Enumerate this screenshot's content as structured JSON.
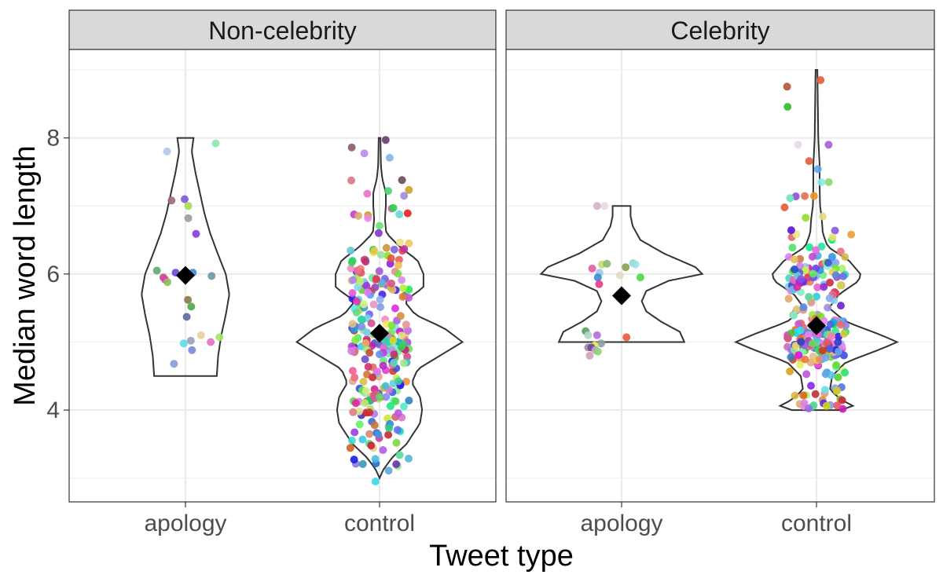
{
  "chart_data": {
    "type": "violin",
    "xlabel": "Tweet type",
    "ylabel": "Median word length",
    "ylim": [
      2.65,
      9.3
    ],
    "yticks": [
      4,
      6,
      8
    ],
    "categories": [
      "apology",
      "control"
    ],
    "grid": true,
    "panels": [
      {
        "title": "Non-celebrity",
        "groups": [
          {
            "category": "apology",
            "mean": 5.98,
            "violin": {
              "ymin": 4.5,
              "ymax": 8.0,
              "profile": [
                [
                  4.5,
                  0.7
                ],
                [
                  4.8,
                  0.73
                ],
                [
                  5.1,
                  0.8
                ],
                [
                  5.4,
                  0.9
                ],
                [
                  5.7,
                  0.98
                ],
                [
                  6.0,
                  0.9
                ],
                [
                  6.3,
                  0.72
                ],
                [
                  6.6,
                  0.55
                ],
                [
                  6.9,
                  0.42
                ],
                [
                  7.2,
                  0.32
                ],
                [
                  7.5,
                  0.22
                ],
                [
                  7.8,
                  0.14
                ],
                [
                  8.0,
                  0.18
                ]
              ]
            },
            "points": [
              [
                -0.45,
                7.8,
                "#b3c6e8"
              ],
              [
                0.74,
                7.92,
                "#8ee6a8"
              ],
              [
                -0.02,
                7.1,
                "#7a5ad8"
              ],
              [
                -0.34,
                7.08,
                "#9b6b7a"
              ],
              [
                0.07,
                7.0,
                "#a6d84f"
              ],
              [
                0.07,
                6.82,
                "#a09aa0"
              ],
              [
                0.26,
                6.59,
                "#8a3ad8"
              ],
              [
                -0.7,
                6.05,
                "#5ea870"
              ],
              [
                -0.54,
                5.95,
                "#b05a8a"
              ],
              [
                -0.5,
                5.92,
                "#e83ab8"
              ],
              [
                -0.44,
                5.88,
                "#8ac05a"
              ],
              [
                -0.24,
                6.02,
                "#6a4ad8"
              ],
              [
                0.18,
                6.02,
                "#3a8ad8"
              ],
              [
                0.64,
                5.97,
                "#6a9aa0"
              ],
              [
                0.06,
                5.62,
                "#8a7a4a"
              ],
              [
                0.14,
                5.52,
                "#4aa84a"
              ],
              [
                0.03,
                5.37,
                "#5a6aa0"
              ],
              [
                0.38,
                5.1,
                "#e8d0a0"
              ],
              [
                -0.04,
                4.98,
                "#5ad8e8"
              ],
              [
                0.13,
                5.02,
                "#9aa0b8"
              ],
              [
                0.62,
                5.0,
                "#e870c8"
              ],
              [
                0.83,
                5.07,
                "#a0e860"
              ],
              [
                0.16,
                4.88,
                "#7a8ad8"
              ],
              [
                -0.28,
                4.68,
                "#8a9ad8"
              ]
            ]
          },
          {
            "category": "control",
            "mean": 5.13,
            "violin": {
              "ymin": 3.0,
              "ymax": 8.0,
              "profile": [
                [
                  3.0,
                  0.0
                ],
                [
                  3.12,
                  0.08
                ],
                [
                  3.3,
                  0.28
                ],
                [
                  3.5,
                  0.6
                ],
                [
                  3.8,
                  0.9
                ],
                [
                  4.0,
                  0.95
                ],
                [
                  4.2,
                  0.9
                ],
                [
                  4.4,
                  0.72
                ],
                [
                  4.6,
                  0.85
                ],
                [
                  4.8,
                  1.35
                ],
                [
                  5.0,
                  1.85
                ],
                [
                  5.2,
                  1.45
                ],
                [
                  5.4,
                  0.8
                ],
                [
                  5.6,
                  0.55
                ],
                [
                  5.8,
                  0.98
                ],
                [
                  6.0,
                  0.98
                ],
                [
                  6.2,
                  0.85
                ],
                [
                  6.4,
                  0.45
                ],
                [
                  6.6,
                  0.15
                ],
                [
                  6.8,
                  0.12
                ],
                [
                  7.0,
                  0.14
                ],
                [
                  7.2,
                  0.14
                ],
                [
                  7.4,
                  0.06
                ],
                [
                  7.6,
                  0.03
                ],
                [
                  8.0,
                  0.02
                ]
              ]
            },
            "points": [],
            "generated": {
              "n": 280,
              "seed": 11,
              "outliers": [
                [
                  -0.68,
                  7.86,
                  "#8a5a6a"
                ],
                [
                  0.15,
                  7.97,
                  "#6a3a6a"
                ],
                [
                  0.55,
                  7.38,
                  "#6a4a5a"
                ],
                [
                  -0.1,
                  2.95,
                  "#3ad8e8"
                ],
                [
                  0.6,
                  7.15,
                  "#a08ad8"
                ],
                [
                  -0.3,
                  7.18,
                  "#e870c8"
                ]
              ]
            }
          }
        ]
      },
      {
        "title": "Celebrity",
        "groups": [
          {
            "category": "apology",
            "mean": 5.68,
            "violin": {
              "ymin": 5.0,
              "ymax": 7.0,
              "profile": [
                [
                  5.0,
                  1.4
                ],
                [
                  5.15,
                  1.3
                ],
                [
                  5.3,
                  0.88
                ],
                [
                  5.45,
                  0.55
                ],
                [
                  5.6,
                  0.45
                ],
                [
                  5.75,
                  0.55
                ],
                [
                  5.9,
                  1.05
                ],
                [
                  6.0,
                  1.8
                ],
                [
                  6.1,
                  1.65
                ],
                [
                  6.3,
                  0.95
                ],
                [
                  6.5,
                  0.42
                ],
                [
                  6.7,
                  0.25
                ],
                [
                  6.85,
                  0.2
                ],
                [
                  7.0,
                  0.2
                ]
              ]
            },
            "points": [
              [
                -0.6,
                7.0,
                "#d8b0c8"
              ],
              [
                -0.42,
                7.0,
                "#e8d8e0"
              ],
              [
                -0.48,
                6.14,
                "#c8d870"
              ],
              [
                -0.36,
                6.15,
                "#8ab870"
              ],
              [
                0.1,
                6.1,
                "#8aa04a"
              ],
              [
                0.28,
                6.16,
                "#8ad8d8"
              ],
              [
                0.34,
                6.14,
                "#a0e0e8"
              ],
              [
                -0.72,
                6.08,
                "#e85aa0"
              ],
              [
                -0.54,
                6.02,
                "#a0c8e8"
              ],
              [
                0.46,
                5.95,
                "#4ad84a"
              ],
              [
                -0.58,
                5.95,
                "#3a8ad8"
              ],
              [
                -0.55,
                5.85,
                "#e83a8a"
              ],
              [
                -0.04,
                5.98,
                "#e8d8c0"
              ],
              [
                -0.88,
                5.16,
                "#5aa05a"
              ],
              [
                -0.82,
                5.1,
                "#b0d8c8"
              ],
              [
                -0.6,
                5.1,
                "#b070d8"
              ],
              [
                0.12,
                5.07,
                "#e85a3a"
              ],
              [
                -0.5,
                4.98,
                "#8aa0a0"
              ],
              [
                -0.66,
                4.95,
                "#e8e85a"
              ],
              [
                -0.82,
                4.92,
                "#a08aa0"
              ],
              [
                -0.74,
                4.92,
                "#6a4a8a"
              ],
              [
                -0.64,
                4.88,
                "#c0a0d8"
              ],
              [
                -0.78,
                4.8,
                "#d0a0b8"
              ],
              [
                -0.58,
                4.86,
                "#8ad870"
              ]
            ]
          },
          {
            "category": "control",
            "mean": 5.24,
            "violin": {
              "ymin": 4.0,
              "ymax": 9.0,
              "profile": [
                [
                  4.0,
                  0.55
                ],
                [
                  4.05,
                  0.85
                ],
                [
                  4.15,
                  0.55
                ],
                [
                  4.3,
                  0.3
                ],
                [
                  4.5,
                  0.35
                ],
                [
                  4.7,
                  0.65
                ],
                [
                  4.9,
                  1.45
                ],
                [
                  5.0,
                  1.8
                ],
                [
                  5.1,
                  1.45
                ],
                [
                  5.3,
                  0.65
                ],
                [
                  5.5,
                  0.28
                ],
                [
                  5.7,
                  0.5
                ],
                [
                  5.9,
                  0.95
                ],
                [
                  6.0,
                  0.98
                ],
                [
                  6.2,
                  0.72
                ],
                [
                  6.4,
                  0.25
                ],
                [
                  6.6,
                  0.14
                ],
                [
                  6.8,
                  0.12
                ],
                [
                  7.0,
                  0.08
                ],
                [
                  7.3,
                  0.07
                ],
                [
                  7.6,
                  0.07
                ],
                [
                  8.0,
                  0.04
                ],
                [
                  8.5,
                  0.03
                ],
                [
                  9.0,
                  0.02
                ]
              ]
            },
            "points": [],
            "generated": {
              "n": 260,
              "seed": 29,
              "outliers": [
                [
                  0.1,
                  8.85,
                  "#e85a3a"
                ],
                [
                  -0.45,
                  7.9,
                  "#e8d8e8"
                ],
                [
                  -0.18,
                  7.66,
                  "#e85a3a"
                ],
                [
                  0.3,
                  7.35,
                  "#8ad870"
                ],
                [
                  0.12,
                  7.35,
                  "#8ae8e8"
                ],
                [
                  -0.78,
                  6.98,
                  "#e85a3a"
                ],
                [
                  0.85,
                  6.58,
                  "#e8a03a"
                ]
              ]
            }
          }
        ]
      }
    ]
  }
}
